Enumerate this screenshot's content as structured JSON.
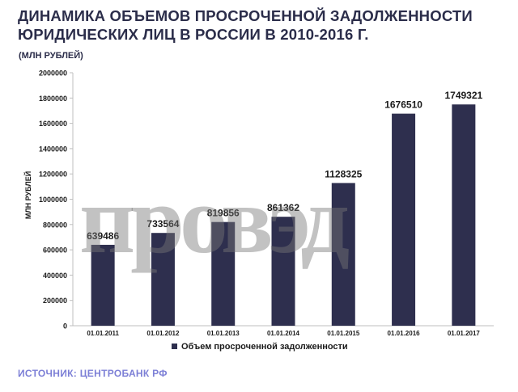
{
  "title_lines": [
    "ДИНАМИКА ОБЪЕМОВ ПРОСРОЧЕННОЙ ЗАДОЛЖЕННОСТИ",
    "ЮРИДИЧЕСКИХ ЛИЦ В РОССИИ В 2010-2016 Г."
  ],
  "unit_label": "(МЛН РУБЛЕЙ)",
  "source": "ИСТОЧНИК: ЦЕНТРОБАНК РФ",
  "watermark": "провэд",
  "colors": {
    "bar": "#2e2f4e",
    "title": "#2b2d4a",
    "source": "#7c7fd6"
  },
  "chart_data": {
    "type": "bar",
    "categories": [
      "01.01.2011",
      "01.01.2012",
      "01.01.2013",
      "01.01.2014",
      "01.01.2015",
      "01.01.2016",
      "01.01.2017"
    ],
    "series": [
      {
        "name": "Объем просроченной задолженности",
        "values": [
          639486,
          733564,
          819856,
          861362,
          1128325,
          1676510,
          1749321
        ]
      }
    ],
    "ylabel": "МЛН РУБЛЕЙ",
    "xlabel": "",
    "ylim": [
      0,
      2000000
    ],
    "yticks": [
      0,
      200000,
      400000,
      600000,
      800000,
      1000000,
      1200000,
      1400000,
      1600000,
      1800000,
      2000000
    ],
    "grid": false,
    "legend": "bottom"
  }
}
